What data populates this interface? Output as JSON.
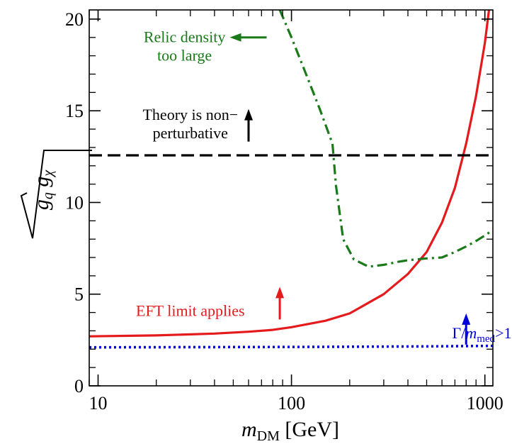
{
  "chart_data": {
    "type": "line",
    "x_scale": "log",
    "xlim": [
      9,
      1100
    ],
    "ylim": [
      0,
      20.5
    ],
    "grid": false,
    "xlabel": {
      "italic": "m",
      "subscript": "DM",
      "unit": "[GeV]"
    },
    "ylabel": {
      "sqrt_of": [
        "g",
        "q",
        "g",
        "χ"
      ]
    },
    "x_ticks": [
      {
        "value": 10,
        "label": "10"
      },
      {
        "value": 100,
        "label": "100"
      },
      {
        "value": 1000,
        "label": "1000"
      }
    ],
    "y_ticks": [
      {
        "value": 0,
        "label": "0"
      },
      {
        "value": 5,
        "label": "5"
      },
      {
        "value": 10,
        "label": "10"
      },
      {
        "value": 15,
        "label": "15"
      },
      {
        "value": 20,
        "label": "20"
      }
    ],
    "series": [
      {
        "id": "eft",
        "color": "#e41a1c",
        "style": "solid",
        "x": [
          9,
          20,
          40,
          60,
          80,
          100,
          150,
          200,
          300,
          400,
          500,
          600,
          700,
          800,
          900,
          1000,
          1050
        ],
        "y": [
          2.7,
          2.75,
          2.85,
          2.95,
          3.05,
          3.2,
          3.55,
          3.95,
          5.0,
          6.1,
          7.3,
          8.9,
          10.8,
          13.2,
          15.8,
          18.7,
          20.5
        ]
      },
      {
        "id": "relic",
        "color": "#1a7a1a",
        "style": "dashdot",
        "x": [
          87,
          100,
          120,
          140,
          163,
          170,
          185,
          210,
          250,
          300,
          350,
          400,
          500,
          600,
          700,
          800,
          900,
          1000,
          1100
        ],
        "y": [
          20.5,
          19.0,
          16.9,
          15.1,
          13.2,
          10.9,
          8.0,
          6.9,
          6.5,
          6.6,
          6.75,
          6.85,
          6.95,
          7.0,
          7.3,
          7.6,
          7.9,
          8.2,
          8.5
        ]
      },
      {
        "id": "perturbativity",
        "color": "#000000",
        "style": "dashed",
        "x": [
          9,
          1100
        ],
        "y": [
          12.57,
          12.57
        ]
      },
      {
        "id": "width",
        "color": "#0000dd",
        "style": "dotted",
        "x": [
          9,
          100,
          500,
          1100
        ],
        "y": [
          2.1,
          2.12,
          2.15,
          2.18
        ]
      }
    ],
    "annotations": [
      {
        "id": "relic",
        "lines": [
          "Relic density",
          "too large"
        ],
        "color": "#1a7a1a",
        "arrow": "left",
        "x": 28,
        "y": 18.5
      },
      {
        "id": "theory",
        "lines": [
          "Theory is non−",
          "perturbative"
        ],
        "color": "#000000",
        "arrow": "up",
        "x": 30,
        "y": 14.35
      },
      {
        "id": "eft",
        "lines": [
          "EFT limit applies"
        ],
        "color": "#e41a1c",
        "arrow": "up",
        "x": 30,
        "y": 4.2
      },
      {
        "id": "width",
        "lines": [
          "Γ/",
          "m",
          "med",
          ">1"
        ],
        "color": "#0000dd",
        "arrow": "up",
        "x": 500,
        "y": 2.75
      }
    ]
  }
}
